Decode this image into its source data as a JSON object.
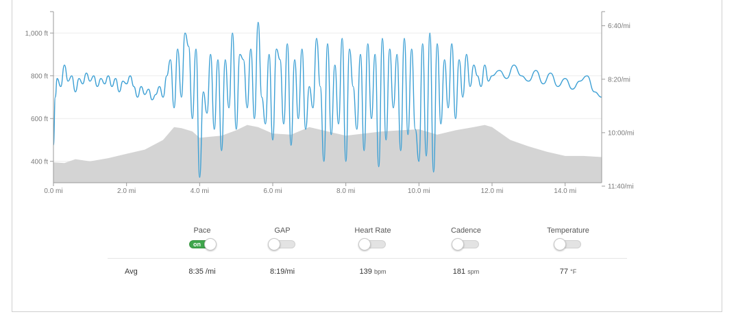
{
  "chart_data": {
    "type": "area+line",
    "x_axis": {
      "min": 0,
      "max": 15,
      "tick_labels": [
        "0.0 mi",
        "2.0 mi",
        "4.0 mi",
        "6.0 mi",
        "8.0 mi",
        "10.0 mi",
        "12.0 mi",
        "14.0 mi"
      ],
      "tick_values": [
        0,
        2,
        4,
        6,
        8,
        10,
        12,
        14
      ]
    },
    "y_left": {
      "min": 300,
      "max": 1100,
      "tick_labels": [
        "1,000 ft",
        "800 ft",
        "600 ft",
        "400 ft"
      ],
      "tick_values": [
        1000,
        800,
        600,
        400
      ]
    },
    "y_right": {
      "tick_labels": [
        "6:40/mi",
        "8:20/mi",
        "10:00/mi",
        "11:40/mi"
      ],
      "tick_values": [
        400,
        500,
        600,
        700
      ],
      "min": 380,
      "max": 700,
      "inverted": true
    },
    "elevation_series": {
      "name": "Elevation",
      "x": [
        0,
        0.3,
        0.6,
        1.0,
        1.5,
        2.0,
        2.5,
        3.0,
        3.3,
        3.5,
        3.8,
        4.0,
        4.3,
        4.6,
        5.0,
        5.3,
        5.6,
        6.0,
        6.5,
        7.0,
        7.5,
        8.0,
        8.5,
        9.0,
        9.5,
        10.0,
        10.5,
        11.0,
        11.5,
        11.8,
        12.0,
        12.5,
        13.0,
        13.5,
        14.0,
        14.5,
        15.0
      ],
      "y": [
        395,
        392,
        410,
        400,
        415,
        435,
        455,
        500,
        560,
        555,
        540,
        510,
        515,
        520,
        545,
        570,
        560,
        530,
        525,
        560,
        540,
        520,
        530,
        540,
        545,
        550,
        525,
        545,
        560,
        570,
        560,
        500,
        470,
        445,
        425,
        425,
        420
      ]
    },
    "pace_series": {
      "name": "Pace",
      "x": [
        0,
        0.05,
        0.1,
        0.2,
        0.3,
        0.4,
        0.5,
        0.6,
        0.7,
        0.8,
        0.9,
        1.0,
        1.1,
        1.2,
        1.3,
        1.4,
        1.5,
        1.6,
        1.7,
        1.8,
        1.9,
        2.0,
        2.1,
        2.2,
        2.3,
        2.4,
        2.5,
        2.6,
        2.7,
        2.8,
        2.9,
        3.0,
        3.1,
        3.2,
        3.3,
        3.4,
        3.5,
        3.6,
        3.7,
        3.8,
        3.9,
        4.0,
        4.1,
        4.2,
        4.3,
        4.4,
        4.5,
        4.6,
        4.7,
        4.8,
        4.9,
        5.0,
        5.1,
        5.2,
        5.3,
        5.4,
        5.5,
        5.6,
        5.7,
        5.8,
        5.9,
        6.0,
        6.1,
        6.2,
        6.3,
        6.4,
        6.5,
        6.6,
        6.7,
        6.8,
        6.9,
        7.0,
        7.1,
        7.2,
        7.3,
        7.4,
        7.5,
        7.6,
        7.7,
        7.8,
        7.9,
        8.0,
        8.1,
        8.2,
        8.3,
        8.4,
        8.5,
        8.6,
        8.7,
        8.8,
        8.9,
        9.0,
        9.1,
        9.2,
        9.3,
        9.4,
        9.5,
        9.6,
        9.7,
        9.8,
        9.9,
        10.0,
        10.1,
        10.2,
        10.3,
        10.4,
        10.5,
        10.6,
        10.7,
        10.8,
        10.9,
        11.0,
        11.1,
        11.2,
        11.3,
        11.4,
        11.5,
        11.6,
        11.7,
        11.8,
        11.9,
        12.0,
        12.2,
        12.4,
        12.6,
        12.8,
        13.0,
        13.2,
        13.4,
        13.6,
        13.8,
        14.0,
        14.2,
        14.4,
        14.6,
        14.8,
        15.0
      ],
      "y": [
        630,
        540,
        505,
        520,
        480,
        510,
        500,
        530,
        505,
        515,
        495,
        510,
        500,
        520,
        505,
        515,
        500,
        520,
        505,
        530,
        510,
        515,
        500,
        520,
        540,
        520,
        535,
        525,
        545,
        535,
        520,
        540,
        500,
        470,
        560,
        450,
        540,
        420,
        445,
        580,
        450,
        690,
        530,
        570,
        460,
        600,
        470,
        640,
        470,
        560,
        420,
        600,
        460,
        470,
        560,
        450,
        580,
        400,
        540,
        590,
        460,
        620,
        450,
        470,
        590,
        440,
        630,
        470,
        580,
        450,
        600,
        520,
        560,
        430,
        520,
        660,
        440,
        610,
        480,
        590,
        430,
        660,
        450,
        520,
        600,
        460,
        640,
        440,
        580,
        460,
        670,
        430,
        620,
        450,
        560,
        460,
        640,
        430,
        610,
        450,
        600,
        660,
        440,
        650,
        420,
        680,
        440,
        590,
        470,
        560,
        440,
        580,
        470,
        540,
        460,
        520,
        480,
        500,
        520,
        480,
        510,
        500,
        490,
        505,
        480,
        500,
        510,
        490,
        515,
        495,
        520,
        505,
        525,
        510,
        500,
        530,
        540
      ]
    }
  },
  "toggles": [
    {
      "label": "Pace",
      "state": "on",
      "state_text": "on"
    },
    {
      "label": "GAP",
      "state": "off"
    },
    {
      "label": "Heart Rate",
      "state": "off"
    },
    {
      "label": "Cadence",
      "state": "off"
    },
    {
      "label": "Temperature",
      "state": "off"
    }
  ],
  "averages": {
    "label": "Avg",
    "values": [
      {
        "value": "8:35",
        "unit": "/mi"
      },
      {
        "value": "8:19/mi",
        "unit": ""
      },
      {
        "value": "139",
        "unit": "bpm"
      },
      {
        "value": "181",
        "unit": "spm"
      },
      {
        "value": "77",
        "unit": "°F"
      }
    ]
  },
  "colors": {
    "pace_line": "#3b9fd4",
    "elevation_fill": "#d4d4d4",
    "toggle_on": "#3fa64c"
  }
}
